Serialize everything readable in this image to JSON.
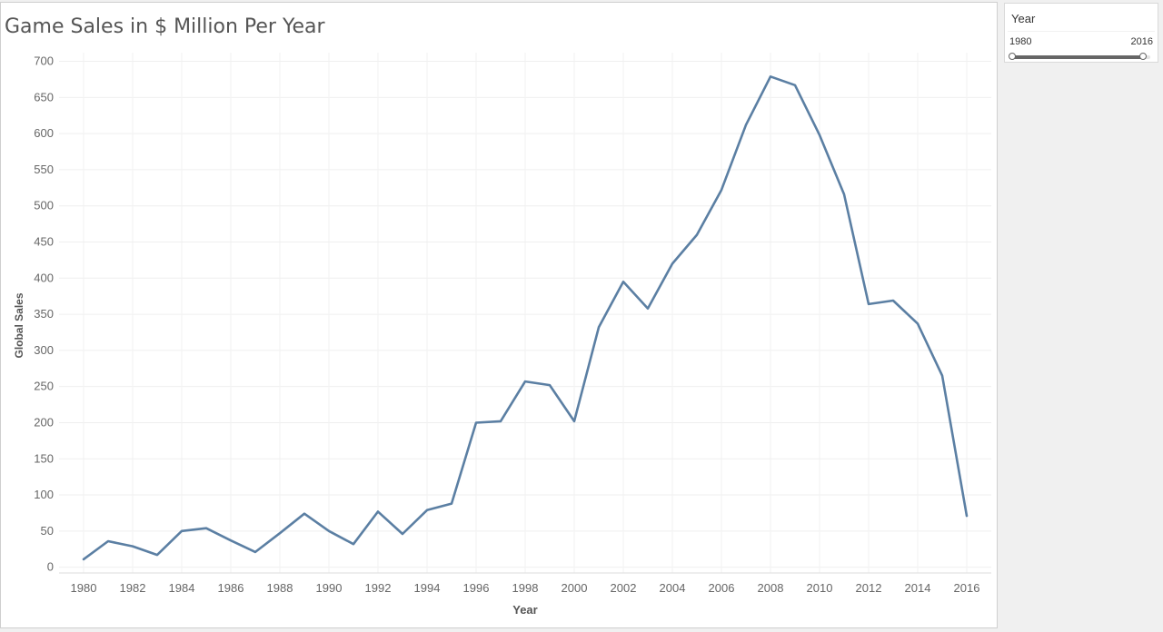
{
  "chart_data": {
    "type": "line",
    "title": "Game Sales in $ Million Per Year",
    "xlabel": "Year",
    "ylabel": "Global Sales",
    "xlim": [
      1979,
      2017
    ],
    "ylim": [
      -8,
      712
    ],
    "yticks": [
      0,
      50,
      100,
      150,
      200,
      250,
      300,
      350,
      400,
      450,
      500,
      550,
      600,
      650,
      700
    ],
    "xticks": [
      1980,
      1982,
      1984,
      1986,
      1988,
      1990,
      1992,
      1994,
      1996,
      1998,
      2000,
      2002,
      2004,
      2006,
      2008,
      2010,
      2012,
      2014,
      2016
    ],
    "grid": true,
    "line_color": "#5b7fa3",
    "series": [
      {
        "x": [
          1980,
          1981,
          1982,
          1983,
          1984,
          1985,
          1986,
          1987,
          1988,
          1989,
          1990,
          1991,
          1992,
          1993,
          1994,
          1995,
          1996,
          1997,
          1998,
          1999,
          2000,
          2001,
          2002,
          2003,
          2004,
          2005,
          2006,
          2007,
          2008,
          2009,
          2010,
          2011,
          2012,
          2013,
          2014,
          2015,
          2016
        ],
        "values": [
          11,
          36,
          29,
          17,
          50,
          54,
          37,
          21,
          47,
          74,
          50,
          32,
          77,
          46,
          79,
          88,
          200,
          202,
          257,
          252,
          202,
          332,
          395,
          358,
          420,
          460,
          522,
          612,
          679,
          667,
          598,
          516,
          364,
          369,
          337,
          265,
          71
        ]
      }
    ]
  },
  "filter": {
    "title": "Year",
    "min_label": "1980",
    "max_label": "2016",
    "range": [
      1980,
      2016
    ]
  }
}
